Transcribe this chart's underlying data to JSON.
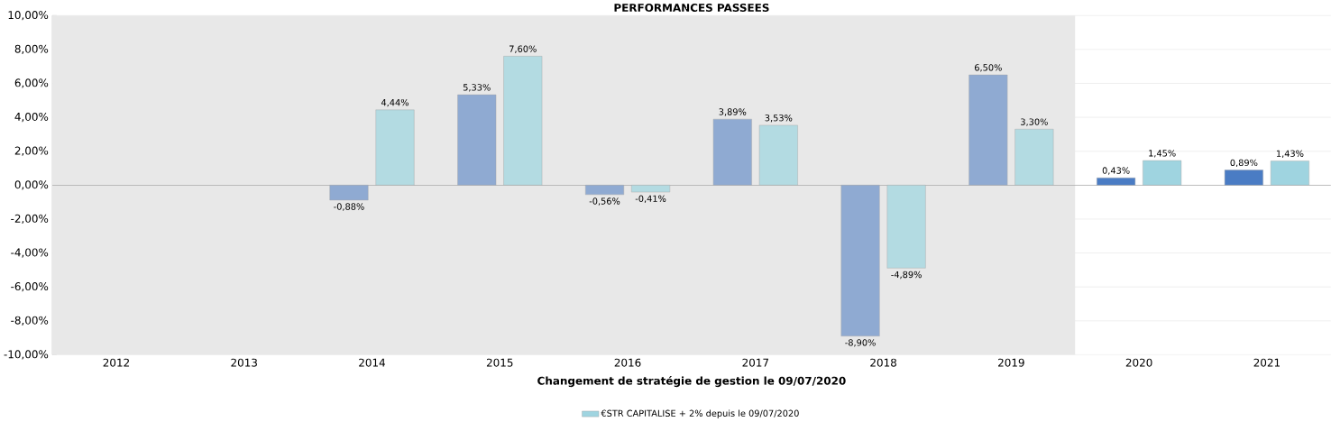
{
  "chart_data": {
    "type": "bar",
    "title": "PERFORMANCES PASSEES",
    "xlabel": "Changement de stratégie de gestion le 09/07/2020",
    "categories": [
      "2012",
      "2013",
      "2014",
      "2015",
      "2016",
      "2017",
      "2018",
      "2019",
      "2020",
      "2021"
    ],
    "series": [
      {
        "color": "#4a7cc4",
        "colors": [
          null,
          null,
          "#8faad2",
          "#8faad2",
          "#8faad2",
          "#8faad2",
          "#8faad2",
          "#8faad2",
          "#4a7cc4",
          "#4a7cc4"
        ],
        "values": [
          null,
          null,
          -0.88,
          5.33,
          -0.56,
          3.89,
          -8.9,
          6.5,
          0.43,
          0.89
        ],
        "value_labels": [
          null,
          null,
          "-0,88%",
          "5,33%",
          "-0,56%",
          "3,89%",
          "-8,90%",
          "6,50%",
          "0,43%",
          "0,89%"
        ]
      },
      {
        "name": "€STR CAPITALISE + 2% depuis le 09/07/2020",
        "color": "#9fd4e0",
        "colors": [
          null,
          null,
          "#b3dbe2",
          "#b3dbe2",
          "#b3dbe2",
          "#b3dbe2",
          "#b3dbe2",
          "#b3dbe2",
          "#9fd4e0",
          "#9fd4e0"
        ],
        "values": [
          null,
          null,
          4.44,
          7.6,
          -0.41,
          3.53,
          -4.89,
          3.3,
          1.45,
          1.43
        ],
        "value_labels": [
          null,
          null,
          "4,44%",
          "7,60%",
          "-0,41%",
          "3,53%",
          "-4,89%",
          "3,30%",
          "1,45%",
          "1,43%"
        ]
      }
    ],
    "ylim": [
      -10,
      10
    ],
    "yticks": [
      {
        "value": -10,
        "label": "-10,00%"
      },
      {
        "value": -8,
        "label": "-8,00%"
      },
      {
        "value": -6,
        "label": "-6,00%"
      },
      {
        "value": -4,
        "label": "-4,00%"
      },
      {
        "value": -2,
        "label": "-2,00%"
      },
      {
        "value": 0,
        "label": "0,00%"
      },
      {
        "value": 2,
        "label": "2,00%"
      },
      {
        "value": 4,
        "label": "4,00%"
      },
      {
        "value": 6,
        "label": "6,00%"
      },
      {
        "value": 8,
        "label": "8,00%"
      },
      {
        "value": 10,
        "label": "10,00%"
      }
    ],
    "bands": [
      {
        "axis": "x",
        "from": "2012",
        "to": "2019",
        "color": "#e8e8e8"
      }
    ],
    "grid": "y",
    "legend": "bottom"
  }
}
